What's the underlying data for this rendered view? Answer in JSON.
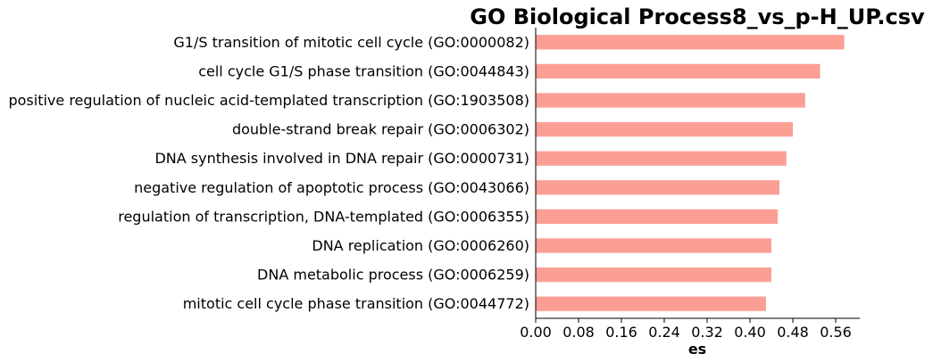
{
  "chart_data": {
    "type": "bar",
    "orientation": "horizontal",
    "title": "GO Biological Process8_vs_p-H_UP.csv",
    "xlabel": "es",
    "ylabel": "",
    "categories": [
      "G1/S transition of mitotic cell cycle (GO:0000082)",
      "cell cycle G1/S phase transition (GO:0044843)",
      "positive regulation of nucleic acid-templated transcription (GO:1903508)",
      "double-strand break repair (GO:0006302)",
      "DNA synthesis involved in DNA repair (GO:0000731)",
      "negative regulation of apoptotic process (GO:0043066)",
      "regulation of transcription, DNA-templated (GO:0006355)",
      "DNA replication (GO:0006260)",
      "DNA metabolic process (GO:0006259)",
      "mitotic cell cycle phase transition (GO:0044772)"
    ],
    "values": [
      0.576,
      0.531,
      0.503,
      0.48,
      0.468,
      0.455,
      0.452,
      0.44,
      0.44,
      0.43
    ],
    "xlim": [
      0,
      0.605
    ],
    "xticks": [
      "0.00",
      "0.08",
      "0.16",
      "0.24",
      "0.32",
      "0.40",
      "0.48",
      "0.56"
    ],
    "grid": false,
    "bar_color": "#fb9f95"
  }
}
